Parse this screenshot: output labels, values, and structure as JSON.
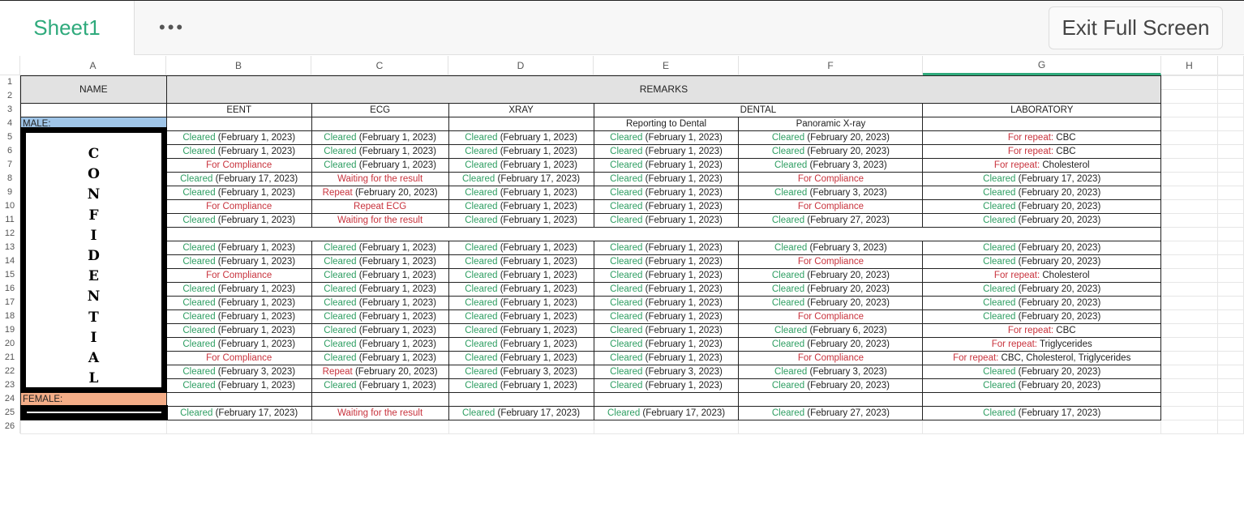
{
  "tab": {
    "label": "Sheet1"
  },
  "toolbar": {
    "more_icon": "ellipsis-icon",
    "more_label": "•••",
    "exit_label": "Exit Full Screen"
  },
  "columns": [
    "A",
    "B",
    "C",
    "D",
    "E",
    "F",
    "G",
    "H"
  ],
  "selected_column": "G",
  "row_numbers": [
    "1",
    "2",
    "3",
    "4",
    "5",
    "6",
    "7",
    "8",
    "9",
    "10",
    "11",
    "12",
    "13",
    "14",
    "15",
    "16",
    "17",
    "18",
    "19",
    "20",
    "21",
    "22",
    "23",
    "24",
    "25",
    "26"
  ],
  "headers": {
    "name": "NAME",
    "remarks": "REMARKS",
    "eent": "EENT",
    "ecg": "ECG",
    "xray": "XRAY",
    "dental": "DENTAL",
    "laboratory": "LABORATORY",
    "reporting_to_dental": "Reporting to Dental",
    "panoramic_xray": "Panoramic X-ray"
  },
  "groups": {
    "male": "MALE:",
    "female": "FEMALE:"
  },
  "redaction_text": [
    "C",
    "O",
    "N",
    "F",
    "I",
    "D",
    "E",
    "N",
    "T",
    "I",
    "A",
    "L"
  ],
  "colors": {
    "cleared": "#2e9e62",
    "issue": "#c8323c",
    "male": "#9fc5e8",
    "female": "#f4ad87",
    "accent": "#2faa7c"
  },
  "rows": [
    {
      "row": "5",
      "cells": [
        [
          "Cleared",
          " (February 1, 2023)"
        ],
        [
          "Cleared",
          " (February 1, 2023)"
        ],
        [
          "Cleared",
          " (February 1, 2023)"
        ],
        [
          "Cleared",
          " (February 1, 2023)"
        ],
        [
          "Cleared",
          " (February 20, 2023)"
        ],
        [
          "For repeat:",
          " CBC"
        ]
      ]
    },
    {
      "row": "6",
      "cells": [
        [
          "Cleared",
          " (February 1, 2023)"
        ],
        [
          "Cleared",
          " (February 1, 2023)"
        ],
        [
          "Cleared",
          " (February 1, 2023)"
        ],
        [
          "Cleared",
          " (February 1, 2023)"
        ],
        [
          "Cleared",
          " (February 20, 2023)"
        ],
        [
          "For repeat:",
          " CBC"
        ]
      ]
    },
    {
      "row": "7",
      "cells": [
        [
          "For Compliance",
          ""
        ],
        [
          "Cleared",
          " (February 1, 2023)"
        ],
        [
          "Cleared",
          " (February 1, 2023)"
        ],
        [
          "Cleared",
          " (February 1, 2023)"
        ],
        [
          "Cleared",
          " (February 3, 2023)"
        ],
        [
          "For repeat:",
          " Cholesterol"
        ]
      ]
    },
    {
      "row": "8",
      "cells": [
        [
          "Cleared",
          " (February 17, 2023)"
        ],
        [
          "Waiting for the result",
          ""
        ],
        [
          "Cleared",
          " (February 17, 2023)"
        ],
        [
          "Cleared",
          " (February 1, 2023)"
        ],
        [
          "For Compliance",
          ""
        ],
        [
          "Cleared",
          " (February 17, 2023)"
        ]
      ]
    },
    {
      "row": "9",
      "cells": [
        [
          "Cleared",
          " (February 1, 2023)"
        ],
        [
          "Repeat",
          " (February 20, 2023)"
        ],
        [
          "Cleared",
          " (February 1, 2023)"
        ],
        [
          "Cleared",
          " (February 1, 2023)"
        ],
        [
          "Cleared",
          " (February 3, 2023)"
        ],
        [
          "Cleared",
          " (February 20, 2023)"
        ]
      ]
    },
    {
      "row": "10",
      "cells": [
        [
          "For Compliance",
          ""
        ],
        [
          "Repeat ECG",
          ""
        ],
        [
          "Cleared",
          " (February 1, 2023)"
        ],
        [
          "Cleared",
          " (February 1, 2023)"
        ],
        [
          "For Compliance",
          ""
        ],
        [
          "Cleared",
          " (February 20, 2023)"
        ]
      ]
    },
    {
      "row": "11",
      "cells": [
        [
          "Cleared",
          " (February 1, 2023)"
        ],
        [
          "Waiting for the result",
          ""
        ],
        [
          "Cleared",
          " (February 1, 2023)"
        ],
        [
          "Cleared",
          " (February 1, 2023)"
        ],
        [
          "Cleared",
          " (February 27, 2023)"
        ],
        [
          "Cleared",
          " (February 20, 2023)"
        ]
      ]
    },
    {
      "row": "12",
      "cells": []
    },
    {
      "row": "13",
      "cells": [
        [
          "Cleared",
          " (February 1, 2023)"
        ],
        [
          "Cleared",
          " (February 1, 2023)"
        ],
        [
          "Cleared",
          " (February 1, 2023)"
        ],
        [
          "Cleared",
          " (February 1, 2023)"
        ],
        [
          "Cleared",
          " (February 3, 2023)"
        ],
        [
          "Cleared",
          " (February 20, 2023)"
        ]
      ]
    },
    {
      "row": "14",
      "cells": [
        [
          "Cleared",
          " (February 1, 2023)"
        ],
        [
          "Cleared",
          " (February 1, 2023)"
        ],
        [
          "Cleared",
          " (February 1, 2023)"
        ],
        [
          "Cleared",
          " (February 1, 2023)"
        ],
        [
          "For Compliance",
          ""
        ],
        [
          "Cleared",
          " (February 20, 2023)"
        ]
      ]
    },
    {
      "row": "15",
      "cells": [
        [
          "For Compliance",
          ""
        ],
        [
          "Cleared",
          " (February 1, 2023)"
        ],
        [
          "Cleared",
          " (February 1, 2023)"
        ],
        [
          "Cleared",
          " (February 1, 2023)"
        ],
        [
          "Cleared",
          " (February 20, 2023)"
        ],
        [
          "For repeat:",
          " Cholesterol"
        ]
      ]
    },
    {
      "row": "16",
      "cells": [
        [
          "Cleared",
          " (February 1, 2023)"
        ],
        [
          "Cleared",
          " (February 1, 2023)"
        ],
        [
          "Cleared",
          " (February 1, 2023)"
        ],
        [
          "Cleared",
          " (February 1, 2023)"
        ],
        [
          "Cleared",
          " (February 20, 2023)"
        ],
        [
          "Cleared",
          " (February 20, 2023)"
        ]
      ]
    },
    {
      "row": "17",
      "cells": [
        [
          "Cleared",
          " (February 1, 2023)"
        ],
        [
          "Cleared",
          " (February 1, 2023)"
        ],
        [
          "Cleared",
          " (February 1, 2023)"
        ],
        [
          "Cleared",
          " (February 1, 2023)"
        ],
        [
          "Cleared",
          " (February 20, 2023)"
        ],
        [
          "Cleared",
          " (February 20, 2023)"
        ]
      ]
    },
    {
      "row": "18",
      "cells": [
        [
          "Cleared",
          " (February 1, 2023)"
        ],
        [
          "Cleared",
          " (February 1, 2023)"
        ],
        [
          "Cleared",
          " (February 1, 2023)"
        ],
        [
          "Cleared",
          " (February 1, 2023)"
        ],
        [
          "For Compliance",
          ""
        ],
        [
          "Cleared",
          " (February 20, 2023)"
        ]
      ]
    },
    {
      "row": "19",
      "cells": [
        [
          "Cleared",
          " (February 1, 2023)"
        ],
        [
          "Cleared",
          " (February 1, 2023)"
        ],
        [
          "Cleared",
          " (February 1, 2023)"
        ],
        [
          "Cleared",
          " (February 1, 2023)"
        ],
        [
          "Cleared",
          " (February 6, 2023)"
        ],
        [
          "For repeat:",
          " CBC"
        ]
      ]
    },
    {
      "row": "20",
      "cells": [
        [
          "Cleared",
          " (February 1, 2023)"
        ],
        [
          "Cleared",
          " (February 1, 2023)"
        ],
        [
          "Cleared",
          " (February 1, 2023)"
        ],
        [
          "Cleared",
          " (February 1, 2023)"
        ],
        [
          "Cleared",
          " (February 20, 2023)"
        ],
        [
          "For repeat:",
          " Triglycerides"
        ]
      ]
    },
    {
      "row": "21",
      "cells": [
        [
          "For Compliance",
          ""
        ],
        [
          "Cleared",
          " (February 1, 2023)"
        ],
        [
          "Cleared",
          " (February 1, 2023)"
        ],
        [
          "Cleared",
          " (February 1, 2023)"
        ],
        [
          "For Compliance",
          ""
        ],
        [
          "For repeat:",
          " CBC, Cholesterol, Triglycerides"
        ]
      ]
    },
    {
      "row": "22",
      "cells": [
        [
          "Cleared",
          " (February 3, 2023)"
        ],
        [
          "Repeat",
          " (February 20, 2023)"
        ],
        [
          "Cleared",
          " (February 3, 2023)"
        ],
        [
          "Cleared",
          " (February 3, 2023)"
        ],
        [
          "Cleared",
          " (February 3, 2023)"
        ],
        [
          "Cleared",
          " (February 20, 2023)"
        ]
      ]
    },
    {
      "row": "23",
      "cells": [
        [
          "Cleared",
          " (February 1, 2023)"
        ],
        [
          "Cleared",
          " (February 1, 2023)"
        ],
        [
          "Cleared",
          " (February 1, 2023)"
        ],
        [
          "Cleared",
          " (February 1, 2023)"
        ],
        [
          "Cleared",
          " (February 20, 2023)"
        ],
        [
          "Cleared",
          " (February 20, 2023)"
        ]
      ]
    },
    {
      "row": "24",
      "cells": [
        [
          "",
          ""
        ],
        [
          "",
          ""
        ],
        [
          "",
          ""
        ],
        [
          "",
          ""
        ],
        [
          "",
          ""
        ],
        [
          "",
          ""
        ]
      ]
    },
    {
      "row": "25",
      "cells": [
        [
          "Cleared",
          " (February 17, 2023)"
        ],
        [
          "Waiting for the result",
          ""
        ],
        [
          "Cleared",
          " (February 17, 2023)"
        ],
        [
          "Cleared",
          " (February 17, 2023)"
        ],
        [
          "Cleared",
          " (February 27, 2023)"
        ],
        [
          "Cleared",
          " (February 17, 2023)"
        ]
      ]
    }
  ]
}
